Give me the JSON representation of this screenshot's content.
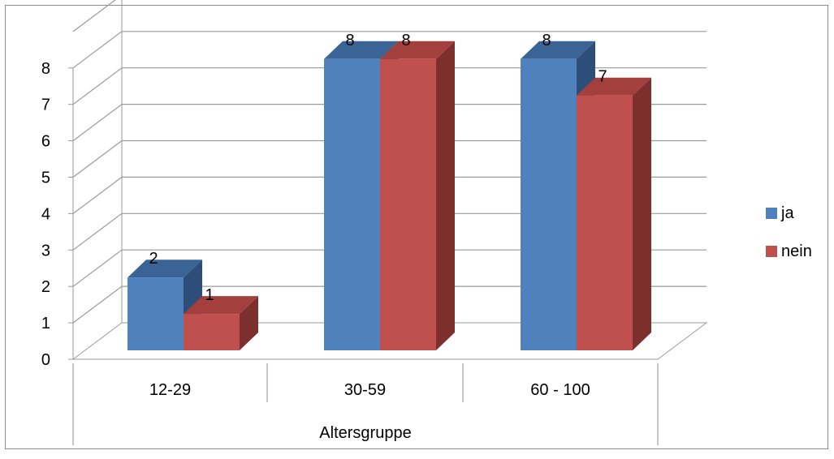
{
  "chart_data": {
    "type": "bar",
    "categories": [
      "12-29",
      "30-59",
      "60 - 100"
    ],
    "series": [
      {
        "name": "ja",
        "values": [
          2,
          8,
          8
        ]
      },
      {
        "name": "nein",
        "values": [
          1,
          8,
          7
        ]
      }
    ],
    "xlabel": "Altersgruppe",
    "ylabel": "",
    "title": "",
    "ylim": [
      0,
      8
    ],
    "yticks": [
      "0",
      "1",
      "2",
      "3",
      "4",
      "5",
      "6",
      "7",
      "8"
    ],
    "grid": true,
    "legend_position": "right",
    "three_d": true,
    "colors": {
      "ja": {
        "front": "#4F81BD",
        "top": "#3A6496",
        "side": "#2C4E78"
      },
      "nein": {
        "front": "#C0504D",
        "top": "#A33F3C",
        "side": "#7D2F2D"
      },
      "grid": "#9A9A9A",
      "frame": "#8C8C8C",
      "text": "#000000"
    }
  }
}
